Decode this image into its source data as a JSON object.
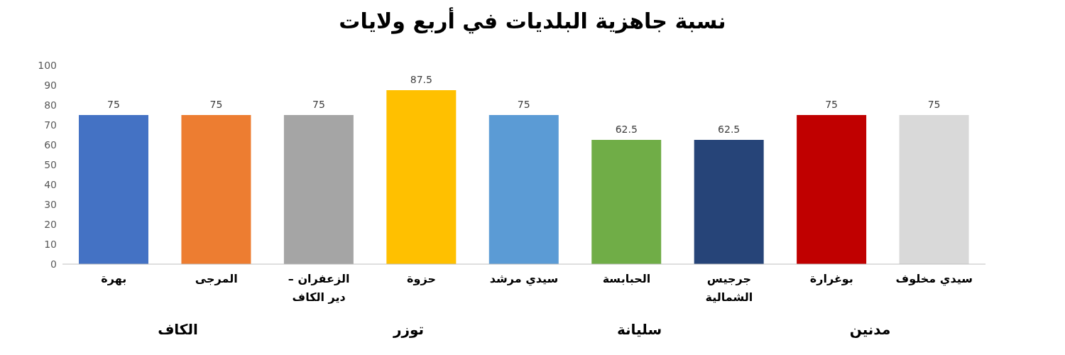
{
  "chart_data": {
    "type": "bar",
    "title": "نسبة جاهزية البلديات في أربع ولايات",
    "categories": [
      "بهرة",
      "المرجى",
      "الزعفران – دير الكاف",
      "حزوة",
      "سيدي مرشد",
      "الحبابسة",
      "جرجيس الشمالية",
      "بوغرارة",
      "سيدي مخلوف"
    ],
    "values": [
      75,
      75,
      75,
      87.5,
      75,
      62.5,
      62.5,
      75,
      75
    ],
    "colors": [
      "#4472c4",
      "#ed7d31",
      "#a5a5a5",
      "#ffc000",
      "#5b9bd5",
      "#70ad47",
      "#264478",
      "#c00000",
      "#d9d9d9"
    ],
    "ylim": [
      0,
      100
    ],
    "yticks": [
      0,
      10,
      20,
      30,
      40,
      50,
      60,
      70,
      80,
      90,
      100
    ],
    "data_labels": true,
    "annotations": [
      "الكاف",
      "توزر",
      "سليانة",
      "مدنين"
    ]
  }
}
